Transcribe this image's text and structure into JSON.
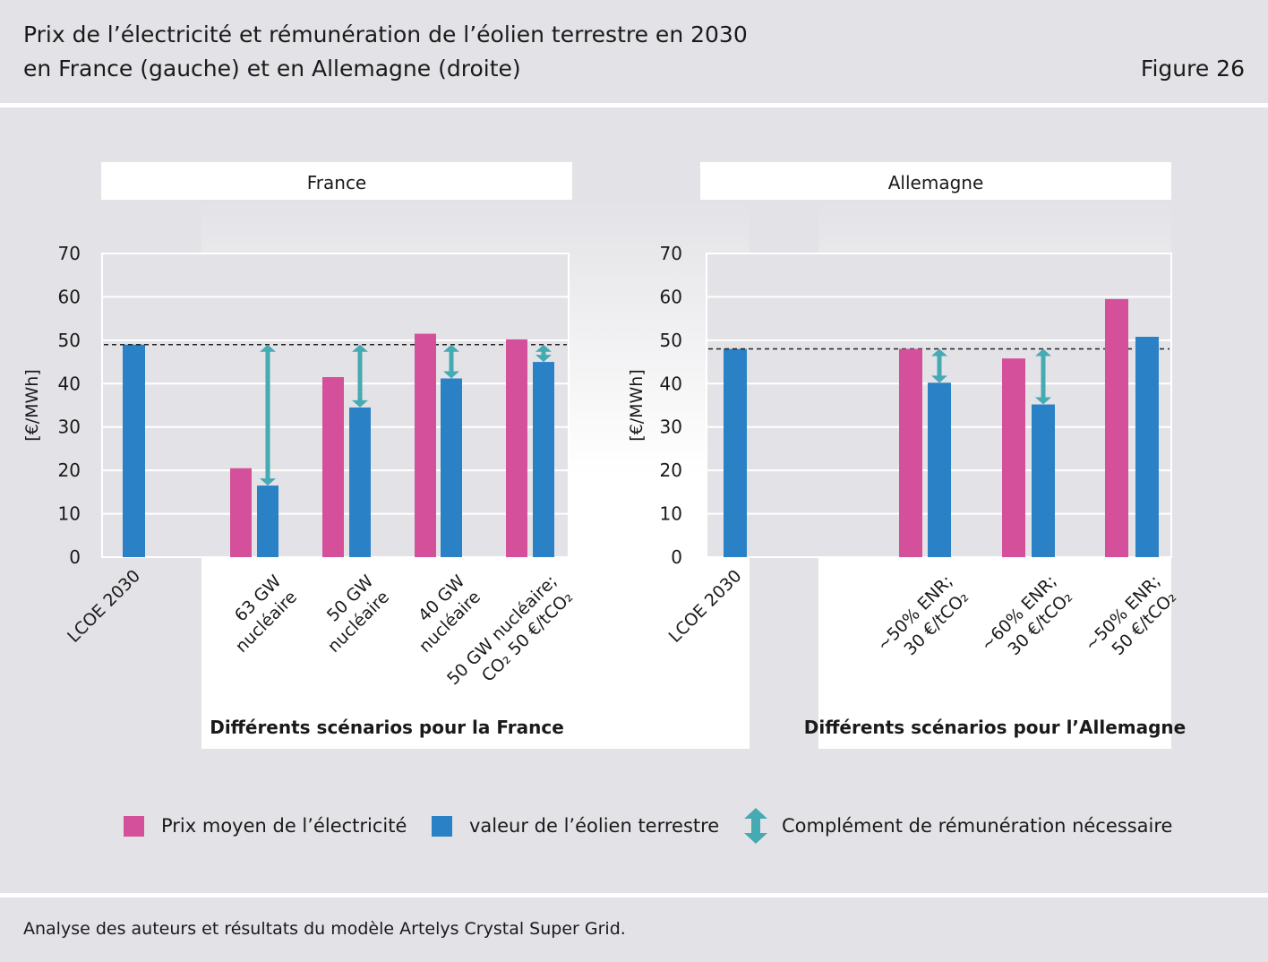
{
  "header": {
    "title_line1": "Prix de l’électricité et rémunération de l’éolien terrestre en 2030",
    "title_line2": "en France (gauche) et en Allemagne (droite)",
    "figure": "Figure 26"
  },
  "footer": {
    "source": "Analyse des auteurs et résultats du modèle Artelys Crystal Super Grid."
  },
  "colors": {
    "price": "#d4509a",
    "wind": "#2a81c6",
    "arrow": "#45aab2",
    "background": "#e3e3e7",
    "panel": "#ffffff"
  },
  "legend": {
    "price": "Prix moyen de l’électricité",
    "wind": "valeur de l’éolien terrestre",
    "complement": "Complément de rémunération nécessaire"
  },
  "chart_data": [
    {
      "type": "bar",
      "panel_title": "France",
      "ylabel": "[€/MWh]",
      "ylim": [
        0,
        70
      ],
      "yticks": [
        0,
        10,
        20,
        30,
        40,
        50,
        60,
        70
      ],
      "reference_line": 49,
      "lcoe": {
        "label": "LCOE 2030",
        "value": 49
      },
      "scenario_title": "Différents scénarios pour la France",
      "scenarios": [
        {
          "label_lines": [
            "63 GW",
            "nucléaire"
          ],
          "price": 20.5,
          "wind": 16.5,
          "complement": [
            16.5,
            49
          ]
        },
        {
          "label_lines": [
            "50 GW",
            "nucléaire"
          ],
          "price": 41.5,
          "wind": 34.5,
          "complement": [
            34.5,
            49
          ]
        },
        {
          "label_lines": [
            "40 GW",
            "nucléaire"
          ],
          "price": 51.5,
          "wind": 41.2,
          "complement": [
            41.2,
            49
          ]
        },
        {
          "label_lines": [
            "50 GW nucléaire;",
            "CO₂ 50 €/tCO₂"
          ],
          "price": 50.2,
          "wind": 45,
          "complement": [
            45,
            49
          ]
        }
      ]
    },
    {
      "type": "bar",
      "panel_title": "Allemagne",
      "ylabel": "[€/MWh]",
      "ylim": [
        0,
        70
      ],
      "yticks": [
        0,
        10,
        20,
        30,
        40,
        50,
        60,
        70
      ],
      "reference_line": 48,
      "lcoe": {
        "label": "LCOE 2030",
        "value": 48
      },
      "scenario_title": "Différents scénarios pour l’Allemagne",
      "scenarios": [
        {
          "label_lines": [
            "~50% ENR;",
            "30 €/tCO₂"
          ],
          "price": 48,
          "wind": 40.2,
          "complement": [
            40.2,
            48
          ]
        },
        {
          "label_lines": [
            "~60% ENR;",
            "30 €/tCO₂"
          ],
          "price": 45.8,
          "wind": 35.2,
          "complement": [
            35.2,
            48
          ]
        },
        {
          "label_lines": [
            "~50% ENR;",
            "50 €/tCO₂"
          ],
          "price": 59.5,
          "wind": 50.8,
          "complement": null
        }
      ]
    }
  ]
}
